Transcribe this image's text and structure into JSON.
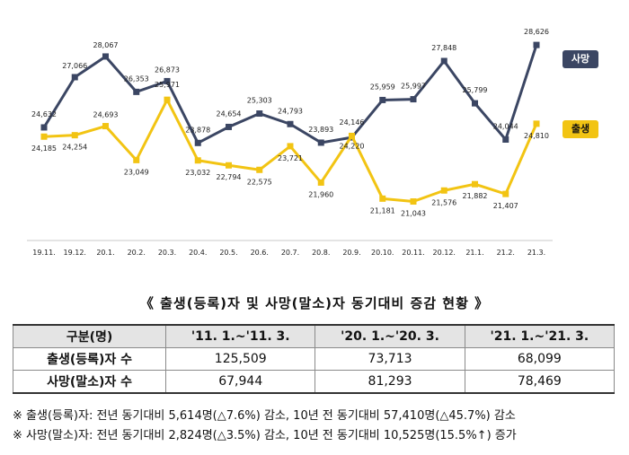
{
  "chart_data": {
    "type": "line",
    "categories": [
      "19.11.",
      "19.12.",
      "20.1.",
      "20.2.",
      "20.3.",
      "20.4.",
      "20.5.",
      "20.6.",
      "20.7.",
      "20.8.",
      "20.9.",
      "20.10.",
      "20.11.",
      "20.12.",
      "21.1.",
      "21.2.",
      "21.3."
    ],
    "series": [
      {
        "name": "사망",
        "color": "#3b4663",
        "values": [
          24632,
          27066,
          28067,
          26353,
          26873,
          23878,
          24654,
          25303,
          24793,
          23893,
          24146,
          25959,
          25997,
          27848,
          25799,
          24044,
          28626
        ]
      },
      {
        "name": "출생",
        "color": "#f2c413",
        "values": [
          24185,
          24254,
          24693,
          23049,
          25971,
          23032,
          22794,
          22575,
          23721,
          21960,
          24220,
          21181,
          21043,
          21576,
          21882,
          21407,
          24810
        ]
      }
    ],
    "labels": {
      "death": [
        "24,632",
        "27,066",
        "28,067",
        "26,353",
        "26,873",
        "23,878",
        "24,654",
        "25,303",
        "24,793",
        "23,893",
        "24,146",
        "25,959",
        "25,997",
        "27,848",
        "25,799",
        "24,044",
        "28,626"
      ],
      "birth": [
        "24,185",
        "24,254",
        "24,693",
        "23,049",
        "25,971",
        "23,032",
        "22,794",
        "22,575",
        "23,721",
        "21,960",
        "24,220",
        "21,181",
        "21,043",
        "21,576",
        "21,882",
        "21,407",
        "24,810"
      ]
    },
    "ylim": [
      19500,
      29500
    ],
    "grid": false,
    "legend_placement": "right"
  },
  "legend": {
    "death": "사망",
    "birth": "출생"
  },
  "table_title": "《 출생(등록)자 및 사망(말소)자 동기대비 증감 현황 》",
  "table": {
    "headers": [
      "구분(명)",
      "'11. 1.~'11. 3.",
      "'20. 1.~'20. 3.",
      "'21. 1.~'21. 3."
    ],
    "rows": [
      {
        "label": "출생(등록)자 수",
        "values": [
          "125,509",
          "73,713",
          "68,099"
        ]
      },
      {
        "label": "사망(말소)자 수",
        "values": [
          "67,944",
          "81,293",
          "78,469"
        ]
      }
    ]
  },
  "notes": [
    "※ 출생(등록)자: 전년 동기대비 5,614명(△7.6%) 감소, 10년 전 동기대비 57,410명(△45.7%) 감소",
    "※ 사망(말소)자: 전년 동기대비 2,824명(△3.5%) 감소, 10년 전 동기대비 10,525명(15.5%↑) 증가"
  ]
}
